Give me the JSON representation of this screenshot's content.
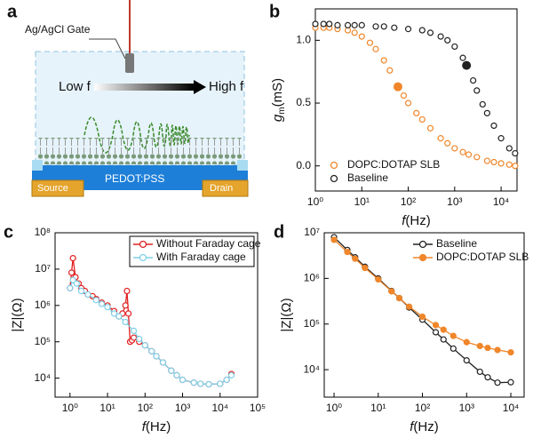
{
  "diagram": {
    "label": "a",
    "gate": "Ag/AgCl Gate",
    "low": "Low f",
    "high": "High f",
    "channel": "PEDOT:PSS",
    "source": "Source",
    "drain": "Drain"
  },
  "chart_data": [
    {
      "type": "scatter",
      "label": "b",
      "xlabel": {
        "symbol": "f",
        "unit": "(Hz)"
      },
      "ylabel": {
        "symbol": "g",
        "sub": "m",
        "unit": "(mS)"
      },
      "xlog": true,
      "xlim": [
        1,
        22000
      ],
      "ylim": [
        -0.2,
        1.25
      ],
      "xticks": [
        {
          "value": 1,
          "label": "10⁰"
        },
        {
          "value": 10,
          "label": "10¹"
        },
        {
          "value": 100,
          "label": "10²"
        },
        {
          "value": 1000,
          "label": "10³"
        },
        {
          "value": 10000,
          "label": "10⁴"
        }
      ],
      "yticks": [
        {
          "value": 0,
          "label": "0.0"
        },
        {
          "value": 0.5,
          "label": "0.5"
        },
        {
          "value": 1,
          "label": "1.0"
        }
      ],
      "legend": "lower left",
      "legend_frame": false,
      "series": [
        {
          "name": "DOPC:DOTAP SLB",
          "color": "#f0862a",
          "marker": "open",
          "highlight": 11,
          "x": [
            1,
            1.5,
            2,
            3,
            5,
            7,
            10,
            15,
            20,
            30,
            40,
            60,
            80,
            100,
            150,
            200,
            300,
            500,
            700,
            1000,
            1500,
            2000,
            3000,
            5000,
            7000,
            10000,
            15000,
            20000
          ],
          "values": [
            1.1,
            1.1,
            1.1,
            1.09,
            1.08,
            1.06,
            1.03,
            0.98,
            0.93,
            0.84,
            0.76,
            0.63,
            0.56,
            0.5,
            0.42,
            0.37,
            0.3,
            0.22,
            0.18,
            0.14,
            0.11,
            0.09,
            0.07,
            0.04,
            0.03,
            0.02,
            0.01,
            0.0
          ]
        },
        {
          "name": "Baseline",
          "color": "#222222",
          "marker": "open",
          "highlight": 17,
          "x": [
            1,
            1.5,
            2,
            3,
            5,
            7,
            10,
            20,
            30,
            50,
            100,
            200,
            300,
            500,
            700,
            1000,
            1500,
            1800,
            2500,
            3000,
            4000,
            5000,
            7000,
            10000,
            15000,
            20000
          ],
          "values": [
            1.13,
            1.13,
            1.13,
            1.12,
            1.12,
            1.12,
            1.12,
            1.11,
            1.11,
            1.1,
            1.09,
            1.08,
            1.06,
            1.03,
            1.0,
            0.95,
            0.86,
            0.8,
            0.68,
            0.6,
            0.49,
            0.42,
            0.32,
            0.22,
            0.14,
            0.1
          ]
        }
      ]
    },
    {
      "type": "line",
      "label": "c",
      "xlabel": {
        "symbol": "f",
        "unit": "(Hz)"
      },
      "ylabel": {
        "symbol": "|Z|",
        "unit": "(Ω)"
      },
      "xlog": true,
      "ylog": true,
      "xlim": [
        0.4,
        100000
      ],
      "ylim": [
        3000,
        100000000
      ],
      "xticks": [
        {
          "value": 1,
          "label": "10⁰"
        },
        {
          "value": 10,
          "label": "10¹"
        },
        {
          "value": 100,
          "label": "10²"
        },
        {
          "value": 1000,
          "label": "10³"
        },
        {
          "value": 10000,
          "label": "10⁴"
        },
        {
          "value": 100000,
          "label": "10⁵"
        }
      ],
      "yticks": [
        {
          "value": 10000,
          "label": "10⁴"
        },
        {
          "value": 100000,
          "label": "10⁵"
        },
        {
          "value": 1000000,
          "label": "10⁶"
        },
        {
          "value": 10000000,
          "label": "10⁷"
        },
        {
          "value": 100000000,
          "label": "10⁸"
        }
      ],
      "legend": "upper right",
      "legend_frame": true,
      "series": [
        {
          "name": "Without Faraday cage",
          "color": "#e02020",
          "marker": "open",
          "x": [
            1,
            1.1,
            1.2,
            1.4,
            1.7,
            2,
            2.5,
            3,
            4,
            5,
            7,
            10,
            15,
            20,
            25,
            30,
            33,
            36,
            40,
            45,
            50,
            70,
            100,
            150,
            200,
            300,
            500,
            700,
            1000,
            2000,
            3000,
            5000,
            10000,
            15000,
            20000
          ],
          "values": [
            3000000,
            8000000,
            20000000,
            6000000,
            4000000,
            3000000,
            2500000,
            2000000,
            1800000,
            1500000,
            1200000,
            1000000,
            700000,
            500000,
            600000,
            1000000,
            2500000,
            600000,
            100000,
            110000,
            130000,
            100000,
            80000,
            55000,
            40000,
            27000,
            16000,
            12000,
            9000,
            7500,
            7000,
            6800,
            7000,
            9000,
            13000
          ]
        },
        {
          "name": "With Faraday cage",
          "color": "#7fd0e8",
          "marker": "open",
          "x": [
            1,
            1.2,
            1.5,
            2,
            3,
            5,
            7,
            10,
            15,
            20,
            30,
            50,
            70,
            100,
            150,
            200,
            300,
            500,
            700,
            1000,
            2000,
            3000,
            5000,
            10000,
            15000,
            20000
          ],
          "values": [
            3000000,
            5000000,
            4000000,
            2500000,
            2000000,
            1400000,
            1100000,
            900000,
            600000,
            500000,
            350000,
            200000,
            120000,
            80000,
            55000,
            40000,
            27000,
            16000,
            12000,
            9000,
            7500,
            7000,
            6800,
            7000,
            9000,
            12000
          ]
        }
      ]
    },
    {
      "type": "line",
      "label": "d",
      "xlabel": {
        "symbol": "f",
        "unit": "(Hz)"
      },
      "ylabel": {
        "symbol": "|Z|",
        "unit": "(Ω)"
      },
      "xlog": true,
      "ylog": true,
      "xlim": [
        0.6,
        20000
      ],
      "ylim": [
        2500,
        10000000
      ],
      "xticks": [
        {
          "value": 1,
          "label": "10⁰"
        },
        {
          "value": 10,
          "label": "10¹"
        },
        {
          "value": 100,
          "label": "10²"
        },
        {
          "value": 1000,
          "label": "10³"
        },
        {
          "value": 10000,
          "label": "10⁴"
        }
      ],
      "yticks": [
        {
          "value": 10000,
          "label": "10⁴"
        },
        {
          "value": 100000,
          "label": "10⁵"
        },
        {
          "value": 1000000,
          "label": "10⁶"
        },
        {
          "value": 10000000,
          "label": "10⁷"
        }
      ],
      "legend": "upper right",
      "legend_frame": false,
      "series": [
        {
          "name": "Baseline",
          "color": "#222222",
          "marker": "open",
          "x": [
            1,
            2,
            3,
            5,
            10,
            20,
            30,
            50,
            100,
            200,
            300,
            500,
            1000,
            2000,
            3000,
            5000,
            10000
          ],
          "values": [
            8000000,
            4200000,
            2900000,
            1800000,
            1000000,
            530000,
            370000,
            230000,
            125000,
            66000,
            46000,
            29000,
            16000,
            9000,
            6800,
            5200,
            5300
          ]
        },
        {
          "name": "DOPC:DOTAP SLB",
          "color": "#f0862a",
          "marker": "filled",
          "x": [
            1,
            2,
            3,
            5,
            10,
            20,
            30,
            50,
            100,
            200,
            300,
            500,
            1000,
            2000,
            3000,
            5000,
            10000
          ],
          "values": [
            7000000,
            3800000,
            2700000,
            1700000,
            950000,
            520000,
            370000,
            240000,
            145000,
            95000,
            75000,
            55000,
            40000,
            33000,
            30000,
            27000,
            24000
          ]
        }
      ]
    }
  ]
}
